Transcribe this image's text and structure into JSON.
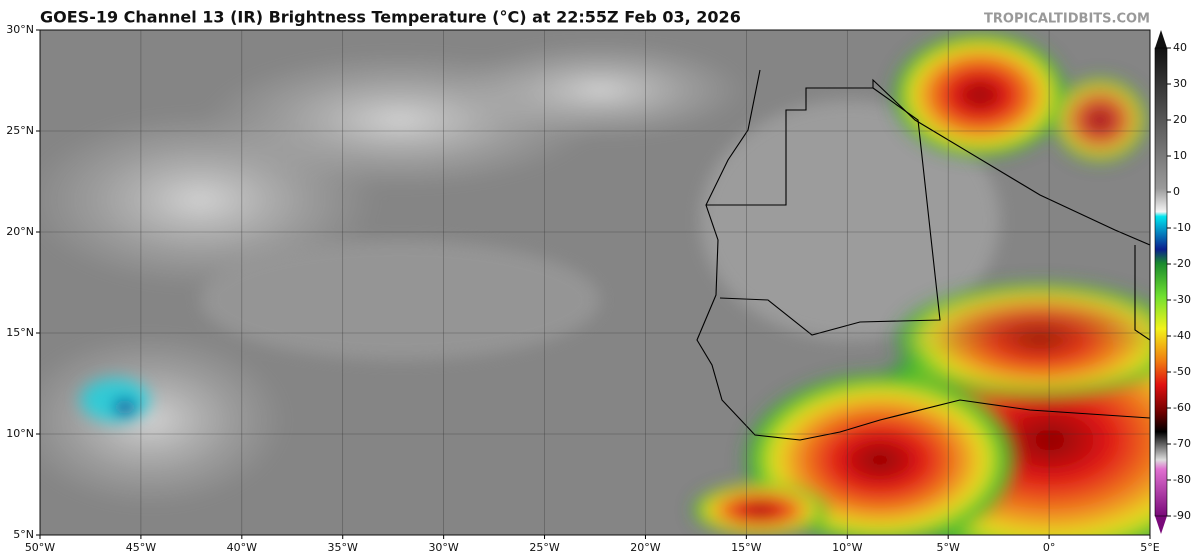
{
  "map": {
    "title": "GOES-19 Channel 13 (IR) Brightness Temperature (°C) at 22:55Z Feb 03, 2026",
    "credit": "TROPICALTIDBITS.COM",
    "xlim": [
      -50,
      5
    ],
    "ylim": [
      5,
      30
    ],
    "lat_ticks": [
      {
        "value": 30,
        "label": "30°N"
      },
      {
        "value": 25,
        "label": "25°N"
      },
      {
        "value": 20,
        "label": "20°N"
      },
      {
        "value": 15,
        "label": "15°N"
      },
      {
        "value": 10,
        "label": "10°N"
      },
      {
        "value": 5,
        "label": "5°N"
      }
    ],
    "lon_ticks": [
      {
        "value": -50,
        "label": "50°W"
      },
      {
        "value": -45,
        "label": "45°W"
      },
      {
        "value": -40,
        "label": "40°W"
      },
      {
        "value": -35,
        "label": "35°W"
      },
      {
        "value": -30,
        "label": "30°W"
      },
      {
        "value": -25,
        "label": "25°W"
      },
      {
        "value": -20,
        "label": "20°W"
      },
      {
        "value": -15,
        "label": "15°W"
      },
      {
        "value": -10,
        "label": "10°W"
      },
      {
        "value": -5,
        "label": "5°W"
      },
      {
        "value": 0,
        "label": "0°"
      },
      {
        "value": 5,
        "label": "5°E"
      }
    ],
    "grid": true,
    "colorbar": {
      "range": [
        -90,
        40
      ],
      "ticks": [
        40,
        30,
        20,
        10,
        0,
        -10,
        -20,
        -30,
        -40,
        -50,
        -60,
        -70,
        -80,
        -90
      ]
    }
  }
}
